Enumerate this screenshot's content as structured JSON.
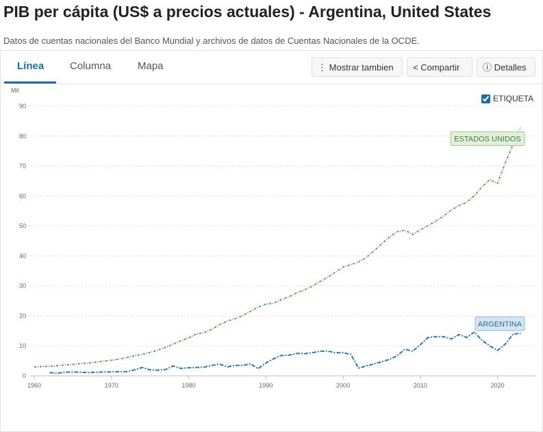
{
  "header": {
    "title": "PIB per cápita (US$ a precios actuales) - Argentina, United States",
    "subtitle": "Datos de cuentas nacionales del Banco Mundial y archivos de datos de Cuentas Nacionales de la OCDE."
  },
  "tabs": [
    "Línea",
    "Columna",
    "Mapa"
  ],
  "buttons": [
    "Mostrar tambien",
    "Compartir",
    "Detalles"
  ],
  "label_toggle": "ETIQUETA",
  "chart_data": {
    "type": "line",
    "y_label": "Mil",
    "x": [
      1960,
      1961,
      1962,
      1963,
      1964,
      1965,
      1966,
      1967,
      1968,
      1969,
      1970,
      1971,
      1972,
      1973,
      1974,
      1975,
      1976,
      1977,
      1978,
      1979,
      1980,
      1981,
      1982,
      1983,
      1984,
      1985,
      1986,
      1987,
      1988,
      1989,
      1990,
      1991,
      1992,
      1993,
      1994,
      1995,
      1996,
      1997,
      1998,
      1999,
      2000,
      2001,
      2002,
      2003,
      2004,
      2005,
      2006,
      2007,
      2008,
      2009,
      2010,
      2011,
      2012,
      2013,
      2014,
      2015,
      2016,
      2017,
      2018,
      2019,
      2020,
      2021,
      2022,
      2023
    ],
    "series": [
      {
        "name": "ARGENTINA",
        "color": "#2a78b4",
        "values": [
          null,
          null,
          1.1,
          0.9,
          1.2,
          1.3,
          1.2,
          1.1,
          1.2,
          1.3,
          1.3,
          1.4,
          1.4,
          2.0,
          2.8,
          2.0,
          1.9,
          2.1,
          3.3,
          2.5,
          2.7,
          2.8,
          2.9,
          3.5,
          3.9,
          3.0,
          3.5,
          3.5,
          4.0,
          2.4,
          4.3,
          5.7,
          6.8,
          6.9,
          7.5,
          7.4,
          7.7,
          8.2,
          8.3,
          7.7,
          7.7,
          7.2,
          2.6,
          3.3,
          4.0,
          4.7,
          5.5,
          6.7,
          8.9,
          8.2,
          10.4,
          12.8,
          13.1,
          13.1,
          12.3,
          13.8,
          12.8,
          14.6,
          11.8,
          10.0,
          8.5,
          10.6,
          13.9,
          14.2
        ]
      },
      {
        "name": "ESTADOS UNIDOS",
        "color": "#5b9f4b",
        "values": [
          3.0,
          3.1,
          3.2,
          3.4,
          3.6,
          3.8,
          4.1,
          4.3,
          4.6,
          4.9,
          5.2,
          5.6,
          6.1,
          6.7,
          7.2,
          7.8,
          8.6,
          9.5,
          10.6,
          11.7,
          12.6,
          14.0,
          14.4,
          15.5,
          17.1,
          18.2,
          19.1,
          20.1,
          21.5,
          23.0,
          23.9,
          24.3,
          25.4,
          26.4,
          27.7,
          28.7,
          29.9,
          31.5,
          32.9,
          34.6,
          36.3,
          37.1,
          38.0,
          39.5,
          41.7,
          44.1,
          46.3,
          48.1,
          48.6,
          47.2,
          48.7,
          50.1,
          51.7,
          53.3,
          55.3,
          56.8,
          57.9,
          60.1,
          63.1,
          65.5,
          64.3,
          71.0,
          77.2,
          82.8
        ]
      }
    ],
    "xlim": [
      1959,
      2025
    ],
    "xticks": [
      1960,
      1970,
      1980,
      1990,
      2000,
      2010,
      2020
    ],
    "ylim": [
      0,
      90
    ],
    "yticks": [
      0,
      10,
      20,
      30,
      40,
      50,
      60,
      70,
      80,
      90
    ],
    "grid": true
  }
}
